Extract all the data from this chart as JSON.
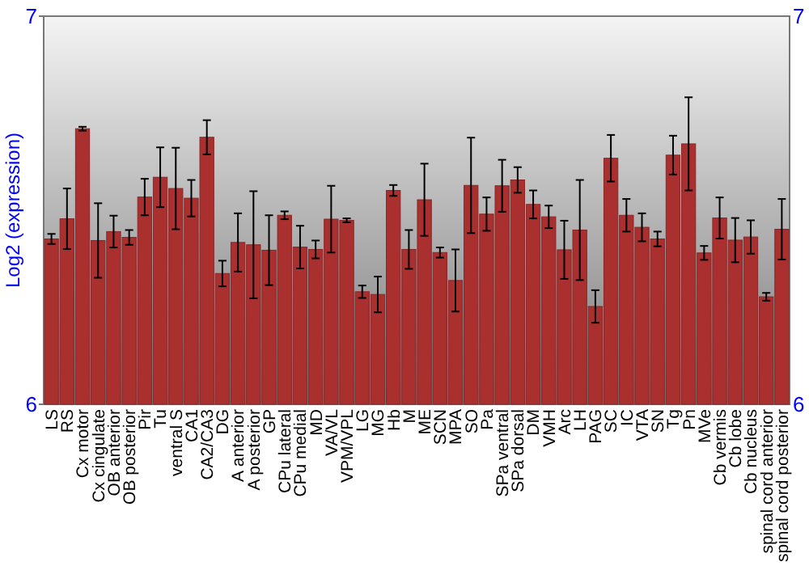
{
  "chart_data": {
    "type": "bar",
    "ylabel": "Log2 (expression)",
    "categories": [
      "LS",
      "RS",
      "Cx motor",
      "Cx cingulate",
      "OB anterior",
      "OB posterior",
      "Pir",
      "Tu",
      "ventral S",
      "CA1",
      "CA2/CA3",
      "DG",
      "A anterior",
      "A posterior",
      "GP",
      "CPu lateral",
      "CPu medial",
      "MD",
      "VA/VL",
      "VPM/VPL",
      "LG",
      "MG",
      "Hb",
      "M",
      "ME",
      "SCN",
      "MPA",
      "SO",
      "Pa",
      "SPa ventral",
      "SPa dorsal",
      "DM",
      "VMH",
      "Arc",
      "LH",
      "PAG",
      "SC",
      "IC",
      "VTA",
      "SN",
      "Tg",
      "Pn",
      "MVe",
      "Cb vermis",
      "Cb lobe",
      "Cb nucleus",
      "spinal cord anterior",
      "spinal cord posterior"
    ],
    "values": [
      6.426,
      6.478,
      6.71,
      6.422,
      6.445,
      6.43,
      6.534,
      6.585,
      6.556,
      6.531,
      6.688,
      6.337,
      6.417,
      6.411,
      6.397,
      6.487,
      6.405,
      6.399,
      6.477,
      6.474,
      6.29,
      6.283,
      6.551,
      6.399,
      6.527,
      6.391,
      6.319,
      6.564,
      6.49,
      6.563,
      6.578,
      6.515,
      6.483,
      6.398,
      6.449,
      6.252,
      6.634,
      6.487,
      6.456,
      6.426,
      6.642,
      6.671,
      6.39,
      6.48,
      6.423,
      6.431,
      6.277,
      6.451
    ],
    "errors": [
      0.013,
      0.078,
      0.005,
      0.096,
      0.041,
      0.019,
      0.047,
      0.077,
      0.105,
      0.047,
      0.044,
      0.033,
      0.075,
      0.138,
      0.09,
      0.01,
      0.055,
      0.023,
      0.086,
      0.005,
      0.016,
      0.046,
      0.014,
      0.05,
      0.093,
      0.013,
      0.08,
      0.123,
      0.043,
      0.067,
      0.033,
      0.036,
      0.029,
      0.075,
      0.129,
      0.042,
      0.06,
      0.042,
      0.036,
      0.019,
      0.05,
      0.12,
      0.018,
      0.053,
      0.057,
      0.043,
      0.01,
      0.078
    ],
    "color": "#aa2f2f",
    "ylim": [
      6,
      7
    ],
    "yticks": [
      6,
      7
    ],
    "y2lim": [
      6,
      7
    ],
    "y2ticks": [
      6,
      7
    ],
    "grid": false
  }
}
